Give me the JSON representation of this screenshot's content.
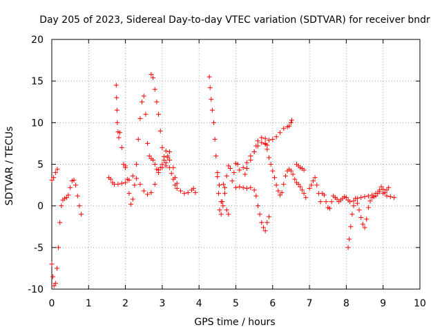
{
  "chart_data": {
    "type": "scatter",
    "title": "Day 205 of 2023, Sidereal Day-to-day VTEC variation (SDTVAR) for receiver bndr",
    "xlabel": "GPS time / hours",
    "ylabel": "SDTVAR / TECUs",
    "xlim": [
      0,
      10
    ],
    "ylim": [
      -10,
      20
    ],
    "x_ticks": [
      0,
      1,
      2,
      3,
      4,
      5,
      6,
      7,
      8,
      9,
      10
    ],
    "y_ticks": [
      -10,
      -5,
      0,
      5,
      10,
      15,
      20
    ],
    "x_tick_labels": [
      "0",
      "1",
      "2",
      "3",
      "4",
      "5",
      "6",
      "7",
      "8",
      "9",
      "10"
    ],
    "y_tick_labels": [
      "-10",
      "-5",
      "0",
      "5",
      "10",
      "15",
      "20"
    ],
    "grid": true,
    "marker": "+",
    "color": "#ff0000",
    "series": [
      {
        "name": "seg-1",
        "points": [
          [
            0.0,
            3.1
          ],
          [
            0.05,
            3.4
          ],
          [
            0.1,
            4.0
          ],
          [
            0.15,
            4.4
          ]
        ]
      },
      {
        "name": "seg-2",
        "points": [
          [
            0.0,
            -7.0
          ],
          [
            0.03,
            -8.5
          ],
          [
            0.06,
            -9.6
          ],
          [
            0.1,
            -9.3
          ],
          [
            0.14,
            -7.5
          ],
          [
            0.18,
            -5.0
          ],
          [
            0.22,
            -2.0
          ],
          [
            0.26,
            0.0
          ],
          [
            0.3,
            0.7
          ],
          [
            0.35,
            0.9
          ],
          [
            0.4,
            1.0
          ],
          [
            0.45,
            1.3
          ],
          [
            0.5,
            2.2
          ],
          [
            0.55,
            3.0
          ],
          [
            0.6,
            3.1
          ],
          [
            0.65,
            2.5
          ],
          [
            0.7,
            1.2
          ],
          [
            0.75,
            0.0
          ],
          [
            0.8,
            -1.0
          ]
        ]
      },
      {
        "name": "seg-3",
        "points": [
          [
            1.55,
            3.4
          ],
          [
            1.6,
            3.2
          ],
          [
            1.65,
            2.8
          ],
          [
            1.7,
            2.6
          ],
          [
            1.8,
            2.6
          ],
          [
            1.9,
            2.7
          ],
          [
            2.0,
            2.8
          ],
          [
            2.1,
            3.1
          ],
          [
            2.2,
            3.6
          ],
          [
            2.3,
            3.3
          ],
          [
            2.4,
            2.6
          ],
          [
            2.5,
            1.8
          ],
          [
            2.6,
            1.4
          ],
          [
            2.7,
            1.6
          ],
          [
            2.8,
            2.6
          ],
          [
            2.9,
            4.0
          ],
          [
            3.0,
            4.6
          ],
          [
            3.1,
            5.2
          ],
          [
            3.2,
            5.5
          ],
          [
            3.3,
            4.6
          ],
          [
            3.35,
            3.4
          ],
          [
            3.4,
            2.7
          ],
          [
            3.5,
            1.8
          ],
          [
            3.6,
            1.5
          ],
          [
            3.7,
            1.6
          ],
          [
            3.8,
            1.9
          ],
          [
            3.85,
            2.1
          ],
          [
            3.9,
            1.6
          ]
        ]
      },
      {
        "name": "seg-4",
        "points": [
          [
            1.75,
            14.5
          ],
          [
            1.76,
            13.0
          ],
          [
            1.77,
            11.5
          ],
          [
            1.78,
            10.0
          ],
          [
            1.8,
            8.9
          ],
          [
            1.82,
            8.2
          ],
          [
            1.85,
            8.8
          ],
          [
            1.9,
            7.0
          ],
          [
            1.95,
            5.0
          ],
          [
            2.0,
            4.6
          ]
        ]
      },
      {
        "name": "seg-5",
        "points": [
          [
            2.0,
            4.8
          ],
          [
            2.05,
            3.2
          ],
          [
            2.1,
            1.5
          ],
          [
            2.15,
            0.2
          ],
          [
            2.2,
            0.8
          ],
          [
            2.25,
            2.5
          ],
          [
            2.3,
            5.0
          ],
          [
            2.35,
            8.0
          ],
          [
            2.4,
            10.5
          ],
          [
            2.45,
            12.5
          ],
          [
            2.5,
            13.2
          ],
          [
            2.55,
            11.0
          ],
          [
            2.6,
            7.5
          ],
          [
            2.65,
            6.0
          ],
          [
            2.7,
            5.7
          ],
          [
            2.75,
            5.5
          ],
          [
            2.8,
            5.0
          ],
          [
            2.85,
            4.4
          ],
          [
            2.9,
            4.3
          ],
          [
            2.95,
            4.6
          ],
          [
            3.0,
            5.0
          ],
          [
            3.05,
            5.9
          ],
          [
            3.1,
            6.6
          ],
          [
            3.15,
            6.0
          ],
          [
            3.2,
            4.6
          ],
          [
            3.25,
            3.9
          ],
          [
            3.3,
            3.2
          ],
          [
            3.35,
            2.5
          ],
          [
            3.4,
            2.1
          ]
        ]
      },
      {
        "name": "seg-6",
        "points": [
          [
            2.7,
            15.8
          ],
          [
            2.75,
            15.4
          ],
          [
            2.8,
            14.0
          ],
          [
            2.85,
            12.5
          ],
          [
            2.9,
            11.0
          ],
          [
            2.95,
            9.0
          ],
          [
            3.0,
            7.0
          ],
          [
            3.05,
            5.5
          ],
          [
            3.1,
            4.8
          ],
          [
            3.15,
            5.8
          ],
          [
            3.2,
            6.5
          ]
        ]
      },
      {
        "name": "seg-7",
        "points": [
          [
            4.28,
            15.5
          ],
          [
            4.3,
            14.2
          ],
          [
            4.33,
            12.8
          ],
          [
            4.36,
            11.5
          ],
          [
            4.4,
            10.0
          ],
          [
            4.43,
            8.0
          ],
          [
            4.46,
            6.0
          ],
          [
            4.5,
            3.5
          ],
          [
            4.53,
            1.5
          ],
          [
            4.56,
            -0.5
          ],
          [
            4.6,
            -1.0
          ],
          [
            4.63,
            0.5
          ],
          [
            4.66,
            2.6
          ],
          [
            4.7,
            1.5
          ],
          [
            4.75,
            -0.5
          ],
          [
            4.8,
            -1.0
          ]
        ]
      },
      {
        "name": "seg-8",
        "points": [
          [
            4.5,
            4.0
          ],
          [
            4.55,
            2.5
          ],
          [
            4.6,
            0.5
          ],
          [
            4.65,
            0.0
          ],
          [
            4.7,
            2.2
          ],
          [
            4.75,
            3.6
          ],
          [
            4.8,
            4.8
          ],
          [
            4.85,
            4.5
          ],
          [
            4.9,
            3.0
          ],
          [
            4.95,
            4.0
          ],
          [
            5.0,
            5.1
          ],
          [
            5.05,
            5.0
          ],
          [
            5.1,
            4.3
          ],
          [
            5.2,
            4.6
          ],
          [
            5.3,
            5.2
          ],
          [
            5.4,
            6.0
          ],
          [
            5.5,
            6.5
          ],
          [
            5.6,
            7.2
          ],
          [
            5.7,
            7.6
          ],
          [
            5.8,
            7.5
          ],
          [
            5.85,
            7.3
          ]
        ]
      },
      {
        "name": "seg-9",
        "points": [
          [
            5.0,
            2.2
          ],
          [
            5.1,
            2.3
          ],
          [
            5.2,
            2.2
          ],
          [
            5.3,
            2.1
          ],
          [
            5.4,
            2.2
          ],
          [
            5.5,
            1.9
          ],
          [
            5.55,
            1.2
          ],
          [
            5.6,
            0.0
          ],
          [
            5.65,
            -1.0
          ],
          [
            5.7,
            -2.0
          ],
          [
            5.75,
            -2.6
          ],
          [
            5.8,
            -3.0
          ],
          [
            5.85,
            -2.0
          ],
          [
            5.9,
            -1.3
          ]
        ]
      },
      {
        "name": "seg-10",
        "points": [
          [
            5.25,
            3.8
          ],
          [
            5.3,
            4.5
          ],
          [
            5.4,
            5.5
          ],
          [
            5.5,
            6.5
          ],
          [
            5.55,
            7.2
          ],
          [
            5.6,
            7.8
          ],
          [
            5.7,
            8.2
          ],
          [
            5.8,
            8.1
          ],
          [
            5.9,
            7.9
          ],
          [
            6.0,
            8.0
          ],
          [
            6.1,
            8.3
          ],
          [
            6.2,
            8.8
          ],
          [
            6.3,
            9.3
          ],
          [
            6.4,
            9.5
          ],
          [
            6.45,
            9.6
          ],
          [
            6.5,
            10.0
          ],
          [
            6.52,
            10.3
          ]
        ]
      },
      {
        "name": "seg-11",
        "points": [
          [
            5.8,
            7.4
          ],
          [
            5.85,
            6.8
          ],
          [
            5.9,
            5.8
          ],
          [
            5.95,
            5.0
          ],
          [
            6.0,
            4.2
          ],
          [
            6.05,
            3.4
          ],
          [
            6.1,
            2.5
          ],
          [
            6.15,
            1.8
          ],
          [
            6.2,
            1.3
          ],
          [
            6.25,
            1.6
          ],
          [
            6.3,
            2.6
          ],
          [
            6.35,
            3.6
          ],
          [
            6.4,
            4.2
          ],
          [
            6.45,
            4.4
          ],
          [
            6.5,
            4.2
          ],
          [
            6.55,
            3.8
          ],
          [
            6.6,
            3.2
          ],
          [
            6.65,
            2.8
          ],
          [
            6.7,
            2.6
          ],
          [
            6.75,
            2.3
          ],
          [
            6.8,
            1.9
          ],
          [
            6.85,
            1.5
          ],
          [
            6.9,
            1.0
          ]
        ]
      },
      {
        "name": "seg-12",
        "points": [
          [
            6.65,
            5.0
          ],
          [
            6.7,
            4.8
          ],
          [
            6.75,
            4.6
          ],
          [
            6.8,
            4.5
          ],
          [
            6.85,
            4.3
          ]
        ]
      },
      {
        "name": "seg-13",
        "points": [
          [
            7.0,
            2.1
          ],
          [
            7.05,
            2.5
          ],
          [
            7.1,
            3.0
          ],
          [
            7.15,
            3.4
          ],
          [
            7.2,
            2.5
          ],
          [
            7.25,
            1.5
          ],
          [
            7.3,
            0.5
          ],
          [
            7.35,
            1.5
          ],
          [
            7.4,
            1.3
          ],
          [
            7.45,
            0.5
          ],
          [
            7.5,
            -0.2
          ],
          [
            7.55,
            -0.3
          ],
          [
            7.6,
            0.5
          ],
          [
            7.65,
            1.2
          ],
          [
            7.7,
            1.0
          ],
          [
            7.75,
            0.8
          ],
          [
            7.8,
            0.5
          ],
          [
            7.85,
            0.7
          ],
          [
            7.9,
            0.9
          ],
          [
            7.95,
            1.1
          ],
          [
            8.0,
            1.0
          ],
          [
            8.05,
            0.7
          ],
          [
            8.1,
            0.5
          ],
          [
            8.2,
            0.6
          ],
          [
            8.3,
            0.9
          ],
          [
            8.4,
            1.0
          ],
          [
            8.5,
            1.1
          ],
          [
            8.6,
            1.2
          ],
          [
            8.7,
            1.3
          ],
          [
            8.8,
            1.5
          ],
          [
            8.9,
            1.7
          ],
          [
            9.0,
            1.5
          ],
          [
            9.1,
            1.2
          ],
          [
            9.2,
            1.1
          ],
          [
            9.3,
            1.0
          ]
        ]
      },
      {
        "name": "seg-14",
        "points": [
          [
            8.05,
            -5.0
          ],
          [
            8.08,
            -4.0
          ],
          [
            8.12,
            -2.5
          ],
          [
            8.16,
            -1.0
          ],
          [
            8.2,
            0.0
          ],
          [
            8.25,
            0.9
          ],
          [
            8.3,
            0.3
          ],
          [
            8.35,
            -0.5
          ],
          [
            8.4,
            -1.4
          ],
          [
            8.45,
            -2.2
          ],
          [
            8.5,
            -2.6
          ],
          [
            8.55,
            -1.6
          ],
          [
            8.6,
            -0.2
          ],
          [
            8.65,
            0.6
          ],
          [
            8.7,
            1.0
          ],
          [
            8.75,
            1.1
          ],
          [
            8.8,
            1.2
          ],
          [
            8.85,
            1.5
          ],
          [
            8.9,
            1.9
          ],
          [
            8.95,
            2.3
          ],
          [
            9.0,
            2.0
          ],
          [
            9.05,
            1.6
          ],
          [
            9.1,
            1.9
          ],
          [
            9.15,
            2.2
          ]
        ]
      }
    ]
  }
}
